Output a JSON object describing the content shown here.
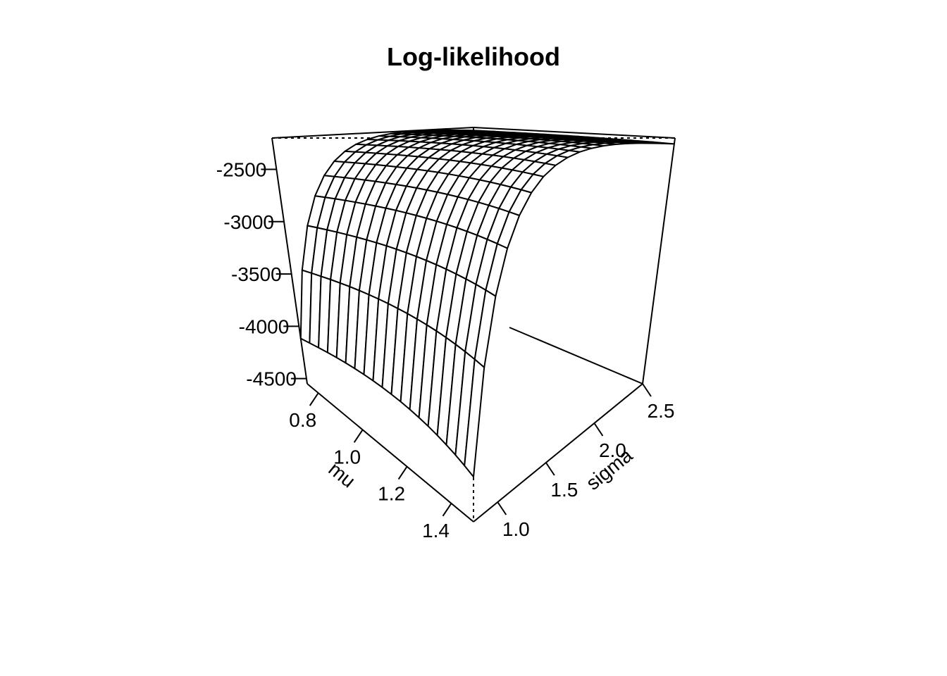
{
  "chart_data": {
    "type": "surface",
    "title": "Log-likelihood",
    "x_axis": {
      "label": "mu",
      "range": [
        0.75,
        1.5
      ],
      "ticks": [
        0.8,
        1.0,
        1.2,
        1.4
      ],
      "tick_labels": [
        "0.8",
        "1.0",
        "1.2",
        "1.4"
      ]
    },
    "y_axis": {
      "label": "sigma",
      "range": [
        0.75,
        2.5
      ],
      "ticks": [
        1.0,
        1.5,
        2.0,
        2.5
      ],
      "tick_labels": [
        "1.0",
        "1.5",
        "2.0",
        "2.5"
      ]
    },
    "z_axis": {
      "label": "",
      "range": [
        -4550,
        -2200
      ],
      "ticks": [
        -4500,
        -4000,
        -3500,
        -3000,
        -2500
      ],
      "tick_labels": [
        "-4500",
        "-4000",
        "-3500",
        "-3000",
        "-2500"
      ]
    },
    "mesh": {
      "mu_lines": 20,
      "sigma_lines": 18,
      "max_value": -2200
    }
  }
}
